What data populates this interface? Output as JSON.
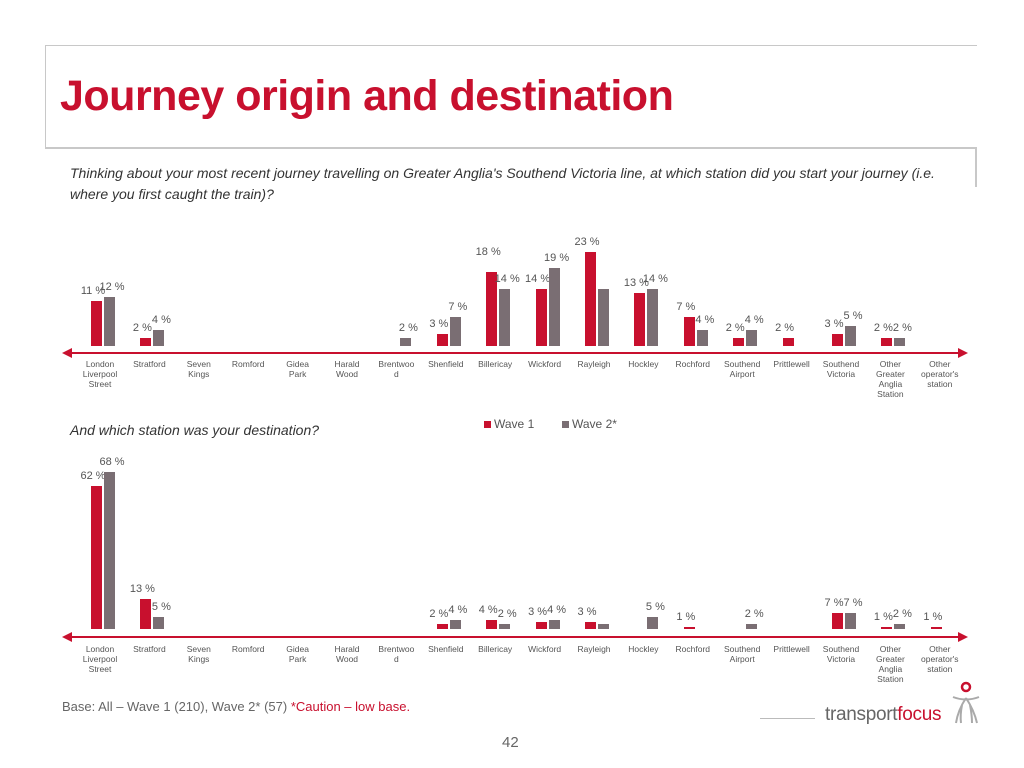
{
  "title": "Journey origin and destination",
  "question_origin": "Thinking about your most recent journey travelling on Greater Anglia's Southend Victoria line, at which station did you start your journey (i.e. where you first caught the train)?",
  "question_destination": "And which station was your destination?",
  "legend": {
    "wave1": "Wave 1",
    "wave2": "Wave 2*"
  },
  "colors": {
    "wave1": "#c8102e",
    "wave2": "#7a6e73",
    "accent": "#c8102e"
  },
  "footer": {
    "base": "Base: All – Wave 1 (210), Wave 2* (57) ",
    "caution": "*Caution – low base.",
    "page": "42",
    "logo_a": "transport",
    "logo_b": "focus"
  },
  "chart_data": [
    {
      "type": "bar",
      "title": "",
      "ylim": [
        0,
        25
      ],
      "categories": [
        "London Liverpool Street",
        "Stratford",
        "Seven Kings",
        "Romford",
        "Gidea Park",
        "Harald Wood",
        "Brentwood",
        "Shenfield",
        "Billericay",
        "Wickford",
        "Rayleigh",
        "Hockley",
        "Rochford",
        "Southend Airport",
        "Prittlewell",
        "Southend Victoria",
        "Other Greater Anglia Station",
        "Other operator's station"
      ],
      "series": [
        {
          "name": "Wave 1",
          "values": [
            11,
            2,
            null,
            null,
            null,
            null,
            null,
            3,
            18,
            14,
            23,
            13,
            7,
            2,
            2,
            3,
            2,
            null
          ],
          "labels": [
            "11 %",
            "2 %",
            null,
            null,
            null,
            null,
            null,
            "3 %",
            "18 %",
            "14 %",
            "23 %",
            "13 %",
            "7 %",
            "2 %",
            "2 %",
            "3 %",
            "2 %",
            null
          ]
        },
        {
          "name": "Wave 2*",
          "values": [
            12,
            4,
            null,
            null,
            null,
            null,
            2,
            7,
            14,
            19,
            14,
            14,
            4,
            4,
            null,
            5,
            2,
            null
          ],
          "labels": [
            "12 %",
            "4 %",
            null,
            null,
            null,
            null,
            "2 %",
            "7 %",
            "14 %",
            "19 %",
            null,
            "14 %",
            "4 %",
            "4 %",
            null,
            "5 %",
            "2 %",
            null
          ]
        }
      ]
    },
    {
      "type": "bar",
      "title": "",
      "ylim": [
        0,
        70
      ],
      "categories": [
        "London Liverpool Street",
        "Stratford",
        "Seven Kings",
        "Romford",
        "Gidea Park",
        "Harald Wood",
        "Brentwood",
        "Shenfield",
        "Billericay",
        "Wickford",
        "Rayleigh",
        "Hockley",
        "Rochford",
        "Southend Airport",
        "Prittlewell",
        "Southend Victoria",
        "Other Greater Anglia Station",
        "Other operator's station"
      ],
      "series": [
        {
          "name": "Wave 1",
          "values": [
            62,
            13,
            null,
            null,
            null,
            null,
            null,
            2,
            4,
            3,
            3,
            null,
            1,
            null,
            null,
            7,
            1,
            1
          ],
          "labels": [
            "62 %",
            "13 %",
            null,
            null,
            null,
            null,
            null,
            "2 %",
            "4 %",
            "3 %",
            "3 %",
            null,
            "1 %",
            null,
            null,
            "7 %",
            "1 %",
            "1 %"
          ]
        },
        {
          "name": "Wave 2*",
          "values": [
            68,
            5,
            null,
            null,
            null,
            null,
            null,
            4,
            2,
            4,
            2,
            5,
            null,
            2,
            null,
            7,
            2,
            null
          ],
          "labels": [
            "68 %",
            "5 %",
            null,
            null,
            null,
            null,
            null,
            "4 %",
            "2 %",
            "4 %",
            null,
            "5 %",
            null,
            "2 %",
            null,
            "7 %",
            "2 %",
            null
          ]
        }
      ]
    }
  ],
  "axis_labels": [
    "London\nLiverpool\nStreet",
    "Stratford",
    "Seven\nKings",
    "Romford",
    "Gidea\nPark",
    "Harald\nWood",
    "Brentwoo\nd",
    "Shenfield",
    "Billericay",
    "Wickford",
    "Rayleigh",
    "Hockley",
    "Rochford",
    "Southend\nAirport",
    "Prittlewell",
    "Southend\nVictoria",
    "Other\nGreater\nAnglia\nStation",
    "Other\noperator's\nstation"
  ]
}
